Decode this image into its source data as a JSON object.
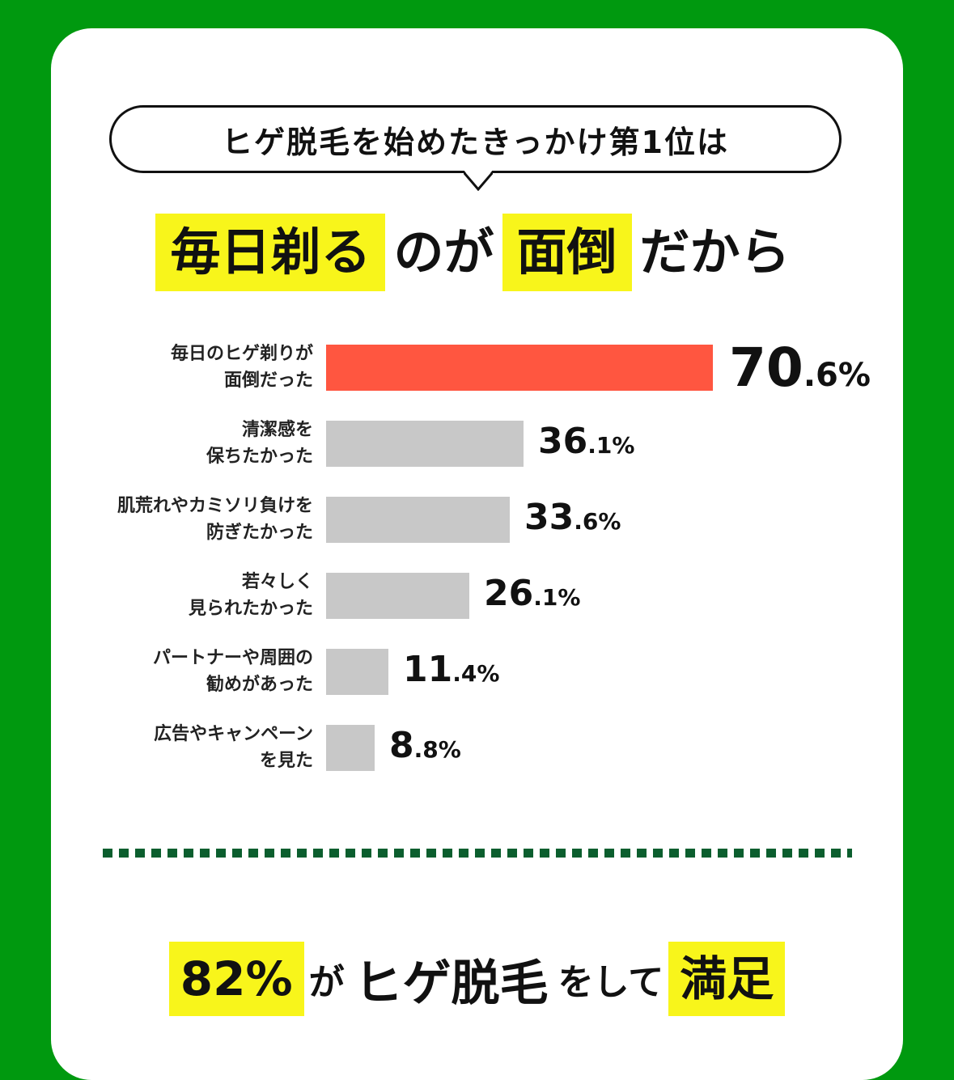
{
  "bubble": {
    "text": "ヒゲ脱毛を始めたきっかけ第1位は"
  },
  "headline": {
    "part1": "毎日剃る",
    "part2": "のが",
    "part3": "面倒",
    "part4": "だから"
  },
  "colors": {
    "background": "#00990f",
    "highlight": "#f8f51b",
    "top_bar": "#ff5640",
    "other_bar": "#c8c8c8",
    "divider": "#0b5e2e"
  },
  "chart_data": {
    "type": "bar",
    "orientation": "horizontal",
    "categories": [
      "毎日のヒゲ剃りが\n面倒だった",
      "清潔感を\n保ちたかった",
      "肌荒れやカミソリ負けを\n防ぎたかった",
      "若々しく\n見られたかった",
      "パートナーや周囲の\n勧めがあった",
      "広告やキャンペーン\nを見た"
    ],
    "values": [
      70.6,
      36.1,
      33.6,
      26.1,
      11.4,
      8.8
    ],
    "value_labels": [
      "70.6%",
      "36.1%",
      "33.6%",
      "26.1%",
      "11.4%",
      "8.8%"
    ],
    "unit": "%"
  },
  "footer": {
    "part1": "82%",
    "part2": "が",
    "part3": "ヒゲ脱毛",
    "part4": "をして",
    "part5": "満足"
  }
}
